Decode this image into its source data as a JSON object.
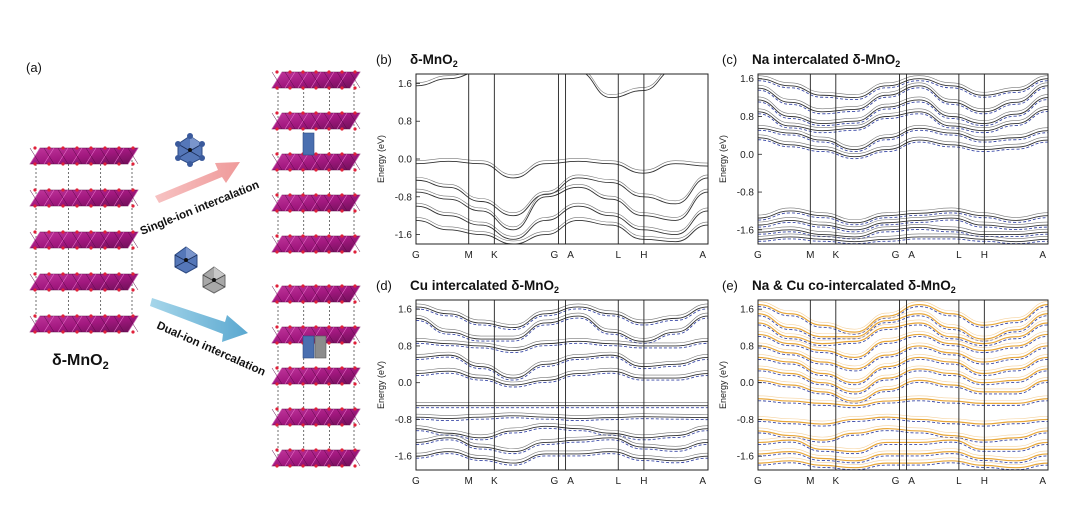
{
  "panel_a": {
    "label": "(a)",
    "material_name": "δ-MnO",
    "material_sub": "2",
    "arrow_top_text": "Single-ion intercalation",
    "arrow_bottom_text": "Dual-ion intercalation",
    "colors": {
      "octahedra": "#a2187f",
      "na_ion": "#4a6fb0",
      "cu_ion": "#8c8c8c",
      "arrow_top": "#f0a5a5",
      "arrow_bottom": "#7cbad8"
    }
  },
  "panels": [
    {
      "label": "(b)",
      "title": "δ-MnO",
      "title_sub": "2",
      "title_tail": ""
    },
    {
      "label": "(c)",
      "title": "Na intercalated δ-MnO",
      "title_sub": "2",
      "title_tail": ""
    },
    {
      "label": "(d)",
      "title": "Cu intercalated δ-MnO",
      "title_sub": "2",
      "title_tail": ""
    },
    {
      "label": "(e)",
      "title": "Na & Cu co-intercalated δ-MnO",
      "title_sub": "2",
      "title_tail": ""
    }
  ],
  "chart_data": [
    {
      "type": "line",
      "panel": "(b)",
      "ylabel": "Energy (eV)",
      "ylim": [
        -1.8,
        1.8
      ],
      "yticks": [
        "1.6",
        "0.8",
        "0.0",
        "-0.8",
        "-1.6"
      ],
      "ytick_values": [
        1.6,
        0.8,
        0.0,
        -0.8,
        -1.6
      ],
      "kpoints": [
        "G",
        "M",
        "K",
        "G",
        "A",
        "L",
        "H",
        "A"
      ],
      "kpath_positions": [
        0,
        0.37,
        0.55,
        1.0,
        1.05,
        1.42,
        1.6,
        2.05
      ],
      "series_colors": [
        "#333333"
      ],
      "bands": [
        [
          1.55,
          1.7,
          1.85,
          1.82,
          1.9,
          1.85,
          1.3,
          1.45,
          1.9,
          1.85
        ],
        [
          -0.1,
          -0.05,
          -0.1,
          -0.4,
          -0.1,
          -0.05,
          -0.1,
          -0.3,
          -0.1,
          -0.15
        ],
        [
          -0.45,
          -0.6,
          -0.9,
          -1.2,
          -0.75,
          -0.4,
          -0.5,
          -0.8,
          -0.95,
          -0.4
        ],
        [
          -0.7,
          -0.85,
          -1.1,
          -1.5,
          -0.8,
          -0.6,
          -0.85,
          -1.2,
          -1.3,
          -0.7
        ],
        [
          -1.0,
          -1.2,
          -1.4,
          -1.7,
          -1.3,
          -1.0,
          -1.2,
          -1.5,
          -1.6,
          -1.1
        ],
        [
          -1.3,
          -1.5,
          -1.6,
          -1.8,
          -1.6,
          -1.3,
          -1.4,
          -1.7,
          -1.75,
          -1.4
        ]
      ]
    },
    {
      "type": "line",
      "panel": "(c)",
      "ylabel": "Energy (eV)",
      "ylim": [
        -1.9,
        1.7
      ],
      "yticks": [
        "1.6",
        "0.8",
        "0.0",
        "-0.8",
        "-1.6"
      ],
      "ytick_values": [
        1.6,
        0.8,
        0.0,
        -0.8,
        -1.6
      ],
      "kpoints": [
        "G",
        "M",
        "K",
        "G",
        "A",
        "L",
        "H",
        "A"
      ],
      "kpath_positions": [
        0,
        0.37,
        0.55,
        1.0,
        1.05,
        1.42,
        1.6,
        2.05
      ],
      "series_colors": [
        "#333333",
        "#3b4aa8"
      ],
      "bands": [
        [
          1.6,
          1.45,
          1.25,
          1.2,
          1.45,
          1.6,
          1.45,
          1.25,
          1.35,
          1.6
        ],
        [
          1.4,
          1.1,
          0.9,
          0.95,
          1.25,
          1.45,
          1.1,
          0.9,
          1.1,
          1.45
        ],
        [
          1.15,
          0.8,
          0.65,
          0.7,
          1.0,
          1.15,
          0.8,
          0.65,
          0.85,
          1.2
        ],
        [
          0.9,
          0.6,
          0.5,
          0.55,
          0.8,
          0.9,
          0.6,
          0.5,
          0.65,
          0.95
        ],
        [
          0.55,
          0.45,
          0.3,
          0.1,
          0.35,
          0.55,
          0.45,
          0.3,
          0.35,
          0.5
        ],
        [
          0.35,
          0.2,
          0.1,
          -0.05,
          0.1,
          0.3,
          0.2,
          0.1,
          0.15,
          0.3
        ],
        [
          -1.35,
          -1.2,
          -1.3,
          -1.45,
          -1.3,
          -1.25,
          -1.2,
          -1.3,
          -1.4,
          -1.3
        ],
        [
          -1.5,
          -1.4,
          -1.5,
          -1.6,
          -1.45,
          -1.4,
          -1.35,
          -1.5,
          -1.55,
          -1.5
        ],
        [
          -1.65,
          -1.6,
          -1.7,
          -1.75,
          -1.6,
          -1.55,
          -1.6,
          -1.7,
          -1.7,
          -1.65
        ],
        [
          -1.8,
          -1.75,
          -1.8,
          -1.85,
          -1.8,
          -1.75,
          -1.75,
          -1.8,
          -1.85,
          -1.8
        ]
      ]
    },
    {
      "type": "line",
      "panel": "(d)",
      "ylabel": "Energy (eV)",
      "ylim": [
        -1.9,
        1.8
      ],
      "yticks": [
        "1.6",
        "0.8",
        "0.0",
        "-0.8",
        "-1.6"
      ],
      "ytick_values": [
        1.6,
        0.8,
        0.0,
        -0.8,
        -1.6
      ],
      "kpoints": [
        "G",
        "M",
        "K",
        "G",
        "A",
        "L",
        "H",
        "A"
      ],
      "kpath_positions": [
        0,
        0.37,
        0.55,
        1.0,
        1.05,
        1.42,
        1.6,
        2.05
      ],
      "series_colors": [
        "#333333",
        "#3b4aa8"
      ],
      "bands": [
        [
          1.65,
          1.5,
          1.3,
          1.2,
          1.5,
          1.65,
          1.5,
          1.3,
          1.4,
          1.65
        ],
        [
          1.4,
          1.1,
          0.95,
          0.95,
          1.3,
          1.45,
          1.1,
          0.9,
          1.1,
          1.45
        ],
        [
          0.9,
          0.85,
          0.8,
          0.7,
          0.85,
          0.9,
          0.85,
          0.8,
          0.8,
          0.9
        ],
        [
          0.55,
          0.6,
          0.35,
          0.1,
          0.4,
          0.55,
          0.6,
          0.35,
          0.4,
          0.55
        ],
        [
          0.2,
          0.25,
          0.1,
          -0.05,
          0.05,
          0.2,
          0.25,
          0.1,
          0.1,
          0.2
        ],
        [
          -0.5,
          -0.5,
          -0.5,
          -0.5,
          -0.5,
          -0.5,
          -0.5,
          -0.5,
          -0.5,
          -0.5
        ],
        [
          -0.75,
          -0.78,
          -0.75,
          -0.72,
          -0.75,
          -0.78,
          -0.76,
          -0.74,
          -0.75,
          -0.76
        ],
        [
          -1.0,
          -1.1,
          -1.2,
          -1.05,
          -0.95,
          -1.0,
          -1.1,
          -1.2,
          -1.15,
          -1.0
        ],
        [
          -1.3,
          -1.2,
          -1.4,
          -1.5,
          -1.3,
          -1.25,
          -1.2,
          -1.4,
          -1.45,
          -1.3
        ],
        [
          -1.6,
          -1.5,
          -1.65,
          -1.75,
          -1.55,
          -1.55,
          -1.5,
          -1.65,
          -1.7,
          -1.6
        ]
      ]
    },
    {
      "type": "line",
      "panel": "(e)",
      "ylabel": "Energy (eV)",
      "ylim": [
        -1.9,
        1.8
      ],
      "yticks": [
        "1.6",
        "0.8",
        "0.0",
        "-0.8",
        "-1.6"
      ],
      "ytick_values": [
        1.6,
        0.8,
        0.0,
        -0.8,
        -1.6
      ],
      "kpoints": [
        "G",
        "M",
        "K",
        "G",
        "A",
        "L",
        "H",
        "A"
      ],
      "kpath_positions": [
        0,
        0.37,
        0.55,
        1.0,
        1.05,
        1.42,
        1.6,
        2.05
      ],
      "series_colors": [
        "#e8a73a",
        "#3b4aa8"
      ],
      "bands": [
        [
          1.7,
          1.5,
          1.25,
          1.1,
          1.45,
          1.7,
          1.5,
          1.25,
          1.35,
          1.7
        ],
        [
          1.5,
          1.2,
          1.0,
          1.0,
          1.35,
          1.5,
          1.2,
          0.95,
          1.15,
          1.5
        ],
        [
          1.3,
          1.0,
          0.85,
          0.9,
          1.2,
          1.3,
          1.0,
          0.85,
          1.0,
          1.3
        ],
        [
          1.05,
          0.85,
          0.7,
          0.55,
          0.9,
          1.05,
          0.85,
          0.7,
          0.8,
          1.05
        ],
        [
          0.8,
          0.65,
          0.45,
          0.3,
          0.6,
          0.8,
          0.65,
          0.45,
          0.55,
          0.8
        ],
        [
          0.55,
          0.45,
          0.2,
          0.0,
          0.35,
          0.55,
          0.45,
          0.2,
          0.3,
          0.55
        ],
        [
          0.3,
          0.2,
          0.0,
          -0.2,
          0.1,
          0.3,
          0.2,
          0.0,
          0.05,
          0.3
        ],
        [
          0.05,
          -0.05,
          -0.2,
          -0.4,
          -0.15,
          0.05,
          -0.05,
          -0.2,
          -0.2,
          0.05
        ],
        [
          -0.35,
          -0.4,
          -0.45,
          -0.5,
          -0.4,
          -0.35,
          -0.4,
          -0.45,
          -0.45,
          -0.35
        ],
        [
          -0.8,
          -0.85,
          -0.9,
          -0.8,
          -0.75,
          -0.8,
          -0.85,
          -0.9,
          -0.85,
          -0.8
        ],
        [
          -1.05,
          -1.15,
          -1.25,
          -1.1,
          -1.0,
          -1.05,
          -1.15,
          -1.25,
          -1.2,
          -1.05
        ],
        [
          -1.3,
          -1.25,
          -1.45,
          -1.5,
          -1.3,
          -1.3,
          -1.25,
          -1.45,
          -1.45,
          -1.3
        ],
        [
          -1.55,
          -1.5,
          -1.65,
          -1.7,
          -1.55,
          -1.55,
          -1.5,
          -1.65,
          -1.7,
          -1.55
        ],
        [
          -1.75,
          -1.7,
          -1.8,
          -1.85,
          -1.75,
          -1.75,
          -1.7,
          -1.8,
          -1.85,
          -1.75
        ]
      ]
    }
  ]
}
